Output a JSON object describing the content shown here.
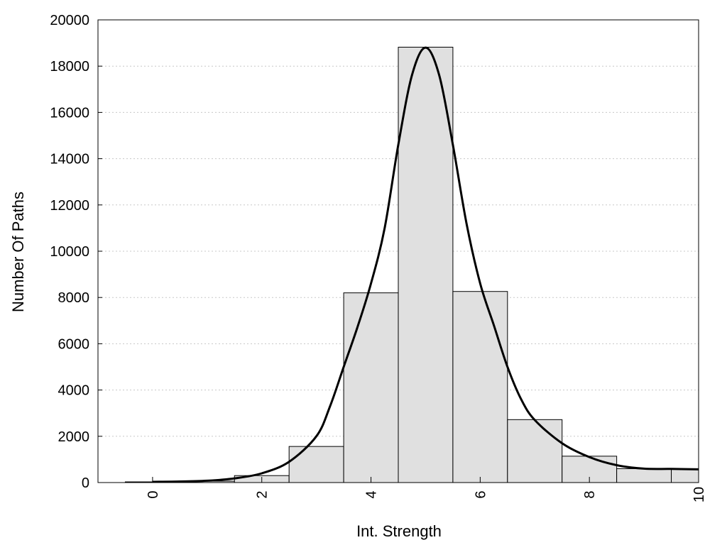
{
  "chart_data": {
    "type": "bar",
    "subtype": "histogram-with-smoothed-curve",
    "xlabel": "Int. Strength",
    "ylabel": "Number Of Paths",
    "xlim": [
      -1,
      10
    ],
    "ylim": [
      0,
      20000
    ],
    "x_ticks": [
      0,
      2,
      4,
      6,
      8,
      10
    ],
    "y_ticks": [
      0,
      2000,
      4000,
      6000,
      8000,
      10000,
      12000,
      14000,
      16000,
      18000,
      20000
    ],
    "grid": "horizontal dotted",
    "bars": {
      "width": 1,
      "x": [
        0,
        1,
        2,
        3,
        4,
        5,
        6,
        7,
        8,
        9,
        10
      ],
      "values": [
        30,
        60,
        300,
        1560,
        8200,
        18820,
        8260,
        2720,
        1140,
        600,
        580
      ]
    },
    "curve": {
      "x": [
        0,
        0.5,
        1,
        1.5,
        2,
        2.5,
        3,
        3.25,
        3.5,
        3.75,
        4,
        4.25,
        4.5,
        4.75,
        5,
        5.25,
        5.5,
        5.75,
        6,
        6.25,
        6.5,
        6.75,
        7,
        7.5,
        8,
        8.5,
        9,
        9.5,
        10
      ],
      "y": [
        30,
        45,
        80,
        180,
        400,
        900,
        2000,
        3300,
        5000,
        6700,
        8600,
        11000,
        14600,
        17600,
        18800,
        17600,
        14600,
        11200,
        8600,
        6800,
        5000,
        3600,
        2700,
        1700,
        1100,
        750,
        600,
        590,
        570
      ]
    },
    "bar_color": "#e0e0e0",
    "curve_color": "#000000"
  }
}
